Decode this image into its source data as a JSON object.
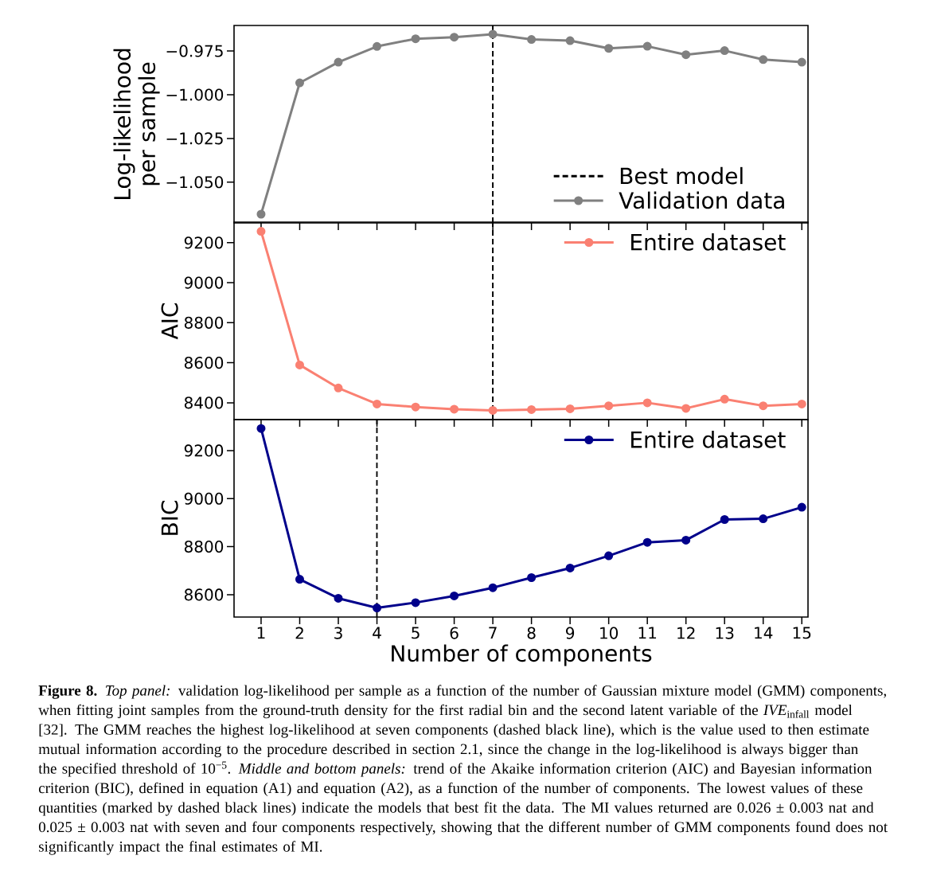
{
  "chart_data": [
    {
      "type": "line",
      "ylabel": "Log-likelihood per sample",
      "x": [
        1,
        2,
        3,
        4,
        5,
        6,
        7,
        8,
        9,
        10,
        11,
        12,
        13,
        14,
        15
      ],
      "xlim": [
        0.3,
        15.16
      ],
      "xticks": [
        1,
        2,
        3,
        4,
        5,
        6,
        7,
        8,
        9,
        10,
        11,
        12,
        13,
        14,
        15
      ],
      "ylim": [
        -1.0733,
        -0.9604
      ],
      "yticks": [
        {
          "value": -1.05,
          "label": "−1.050"
        },
        {
          "value": -1.025,
          "label": "−1.025"
        },
        {
          "value": -1.0,
          "label": "−1.000"
        },
        {
          "value": -0.975,
          "label": "−0.975"
        }
      ],
      "tick_labels": "y",
      "marker": "circle",
      "legend": "bottom right",
      "series": [
        {
          "name": "Validation data",
          "color": "#808080",
          "values": [
            -1.0683,
            -0.9932,
            -0.9814,
            -0.9724,
            -0.968,
            -0.9671,
            -0.9654,
            -0.9684,
            -0.9691,
            -0.9735,
            -0.9723,
            -0.9771,
            -0.9748,
            -0.9799,
            -0.9814
          ]
        }
      ],
      "ref_lines": [
        {
          "axis": "x",
          "value": 7,
          "label": "Best model",
          "color": "#000000",
          "line_style": "dashed"
        }
      ]
    },
    {
      "type": "line",
      "ylabel": "AIC",
      "x": [
        1,
        2,
        3,
        4,
        5,
        6,
        7,
        8,
        9,
        10,
        11,
        12,
        13,
        14,
        15
      ],
      "xlim": [
        0.3,
        15.16
      ],
      "xticks": [
        1,
        2,
        3,
        4,
        5,
        6,
        7,
        8,
        9,
        10,
        11,
        12,
        13,
        14,
        15
      ],
      "ylim": [
        8316,
        9303
      ],
      "yticks": [
        8400,
        8600,
        8800,
        9000,
        9200
      ],
      "tick_labels": "y",
      "marker": "circle",
      "legend": "top right",
      "series": [
        {
          "name": "Entire dataset",
          "color": "#fa8072",
          "values": [
            9257,
            8589,
            8474,
            8394,
            8379,
            8368,
            8362,
            8366,
            8370,
            8385,
            8400,
            8372,
            8418,
            8385,
            8394
          ]
        }
      ],
      "ref_lines": [
        {
          "axis": "x",
          "value": 7,
          "color": "#000000",
          "line_style": "dashed"
        }
      ]
    },
    {
      "type": "line",
      "ylabel": "BIC",
      "xlabel": "Number of components",
      "x": [
        1,
        2,
        3,
        4,
        5,
        6,
        7,
        8,
        9,
        10,
        11,
        12,
        13,
        14,
        15
      ],
      "xlim": [
        0.3,
        15.16
      ],
      "xticks": [
        1,
        2,
        3,
        4,
        5,
        6,
        7,
        8,
        9,
        10,
        11,
        12,
        13,
        14,
        15
      ],
      "ylim": [
        8507,
        9329
      ],
      "yticks": [
        8600,
        8800,
        9000,
        9200
      ],
      "marker": "circle",
      "legend": "top right",
      "series": [
        {
          "name": "Entire dataset",
          "color": "#00008b",
          "values": [
            9292,
            8664,
            8585,
            8545,
            8567,
            8595,
            8629,
            8671,
            8711,
            8762,
            8818,
            8827,
            8913,
            8916,
            8964
          ]
        }
      ],
      "ref_lines": [
        {
          "axis": "x",
          "value": 4,
          "color": "#000000",
          "line_style": "dashed"
        }
      ],
      "annotations": [
        "**Figure 8.** *Top panel:* validation log-likelihood per sample as a function of the number of Gaussian mixture model (GMM) components, when fitting joint samples from the ground-truth density for the first radial bin and the second latent variable of the *IVE*$_{infall}$ model [32]. The GMM reaches the highest log-likelihood at seven components (dashed black line), which is the value used to then estimate mutual information according to the procedure described in section 2.1, since the change in the log-likelihood is always bigger than the specified threshold of 10$^{−5}$. *Middle and bottom panels:* trend of the Akaike information criterion (AIC) and Bayesian information criterion (BIC), defined in equation (A1) and equation (A2), as a function of the number of components. The lowest values of these quantities (marked by dashed black lines) indicate the models that best fit the data. The MI values returned are 0.026 ± 0.003 nat and 0.025 ± 0.003 nat with seven and four components respectively, showing that the different number of GMM components found does not significantly impact the final estimates of MI."
      ]
    }
  ]
}
